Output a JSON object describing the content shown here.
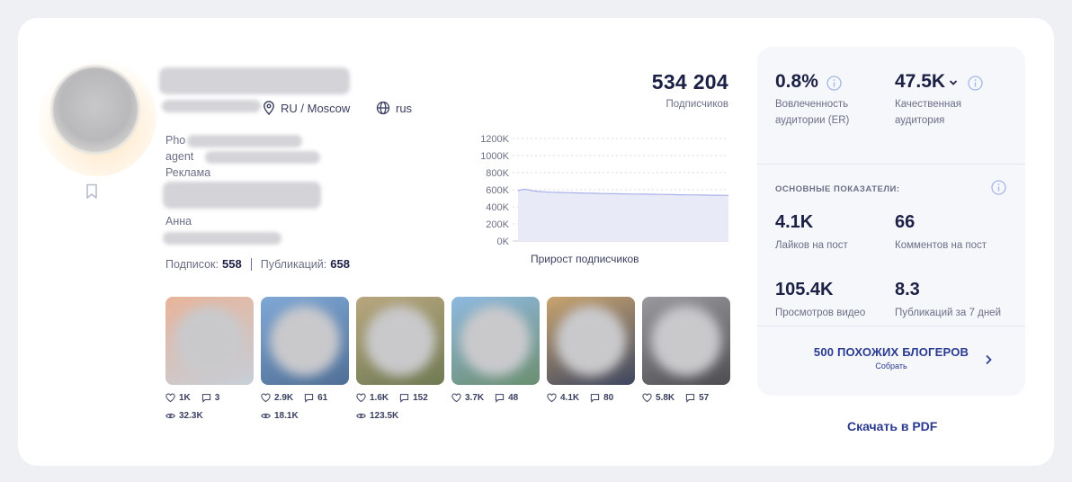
{
  "profile": {
    "location": "RU / Moscow",
    "language": "rus",
    "bio_lines": [
      "Pho",
      "agent",
      "Реклама",
      "Анна"
    ],
    "stats": {
      "following_label": "Подписок:",
      "following_value": "558",
      "posts_label": "Публикаций:",
      "posts_value": "658"
    }
  },
  "followers": {
    "value": "534 204",
    "label": "Подписчиков"
  },
  "chart_data": {
    "type": "area",
    "title": "Прирост подписчиков",
    "yticks": [
      "1200K",
      "1000K",
      "800K",
      "600K",
      "400K",
      "200K",
      "0K"
    ],
    "ylim": [
      0,
      1200000
    ],
    "x": [
      0,
      1,
      2,
      3,
      4,
      5,
      6,
      7,
      8,
      9,
      10,
      11,
      12,
      13,
      14,
      15,
      16,
      17,
      18,
      19,
      20,
      21,
      22,
      23,
      24,
      25,
      26,
      27,
      28,
      29,
      30,
      31,
      32,
      33,
      34,
      35,
      36,
      37,
      38,
      39,
      40
    ],
    "values": [
      590000,
      605000,
      600000,
      585000,
      580000,
      575000,
      572000,
      570000,
      568000,
      566000,
      565000,
      563000,
      562000,
      560000,
      559000,
      558000,
      556000,
      555000,
      554000,
      553000,
      552000,
      551000,
      550000,
      549000,
      548000,
      547000,
      546000,
      545000,
      544000,
      543000,
      542000,
      541000,
      540000,
      539500,
      539000,
      538000,
      537000,
      536000,
      535500,
      535000,
      534204
    ],
    "grid": true,
    "color": "#aab0e8"
  },
  "posts": [
    {
      "likes": "1K",
      "comments": "3",
      "views": "32.3K",
      "colors": [
        "#e8b49a",
        "#c7cfd9"
      ]
    },
    {
      "likes": "2.9K",
      "comments": "61",
      "views": "18.1K",
      "colors": [
        "#7fa8d6",
        "#4f6f96"
      ]
    },
    {
      "likes": "1.6K",
      "comments": "152",
      "views": "123.5K",
      "colors": [
        "#b9a77f",
        "#6f7a52"
      ]
    },
    {
      "likes": "3.7K",
      "comments": "48",
      "views": "",
      "colors": [
        "#8fb9e0",
        "#6b8f70"
      ]
    },
    {
      "likes": "4.1K",
      "comments": "80",
      "views": "",
      "colors": [
        "#c9a46f",
        "#3e4760"
      ]
    },
    {
      "likes": "5.8K",
      "comments": "57",
      "views": "",
      "colors": [
        "#9a9a9e",
        "#4e4e52"
      ]
    }
  ],
  "side": {
    "er_value": "0.8%",
    "er_label": "Вовлеченность аудитории (ER)",
    "quality_value": "47.5K",
    "quality_label": "Качественная аудитория",
    "section_title": "ОСНОВНЫЕ ПОКАЗАТЕЛИ:",
    "likes_value": "4.1K",
    "likes_label": "Лайков на пост",
    "comments_value": "66",
    "comments_label": "Комментов на пост",
    "views_value": "105.4K",
    "views_label": "Просмотров видео",
    "pubs_value": "8.3",
    "pubs_label": "Публикаций за 7 дней",
    "similar_title": "500 ПОХОЖИХ БЛОГЕРОВ",
    "similar_sub": "Собрать"
  },
  "pdf_label": "Скачать в PDF"
}
